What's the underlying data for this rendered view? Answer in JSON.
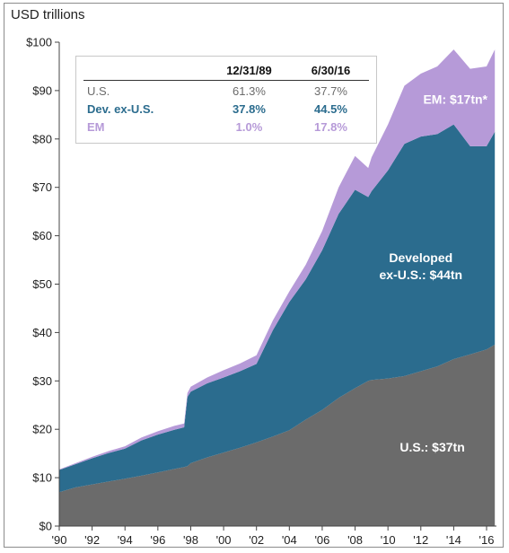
{
  "chart_data": {
    "type": "area",
    "stacked": true,
    "title": "",
    "ylabel": "USD trillions",
    "xlabel": "",
    "ylim": [
      0,
      100
    ],
    "xlim": [
      1990,
      2016.6
    ],
    "grid": false,
    "y_ticks": [
      "$0",
      "$10",
      "$20",
      "$30",
      "$40",
      "$50",
      "$60",
      "$70",
      "$80",
      "$90",
      "$100"
    ],
    "x_ticks": [
      "'90",
      "'92",
      "'94",
      "'96",
      "'98",
      "'00",
      "'02",
      "'04",
      "'06",
      "'08",
      "'10",
      "'12",
      "'14",
      "'16"
    ],
    "x": [
      1990,
      1991,
      1992,
      1993,
      1994,
      1995,
      1996,
      1997,
      1997.6,
      1997.8,
      1998,
      1999,
      2000,
      2001,
      2002,
      2003,
      2004,
      2005,
      2006,
      2007,
      2008,
      2008.8,
      2009,
      2010,
      2011,
      2012,
      2013,
      2014,
      2015,
      2016,
      2016.5
    ],
    "series": [
      {
        "name": "U.S.",
        "values": [
          7,
          8,
          8.6,
          9.2,
          9.8,
          10.4,
          11.1,
          11.8,
          12.2,
          12.4,
          13,
          14.2,
          15.2,
          16.2,
          17.3,
          18.5,
          19.8,
          22,
          24,
          26.5,
          28.5,
          30,
          30.2,
          30.5,
          31,
          32,
          33,
          34.5,
          35.5,
          36.5,
          37.5
        ]
      },
      {
        "name": "Developed ex-U.S.",
        "values": [
          4.6,
          4.8,
          5.4,
          5.9,
          6.2,
          7.3,
          7.8,
          8.1,
          8.2,
          14.3,
          14.8,
          15.3,
          15.5,
          15.8,
          16.2,
          22,
          26.5,
          29,
          33,
          38,
          41,
          38,
          39,
          43,
          48,
          48.5,
          48,
          48.5,
          43,
          42,
          44
        ]
      },
      {
        "name": "EM",
        "values": [
          0.1,
          0.2,
          0.3,
          0.4,
          0.5,
          0.6,
          0.7,
          0.8,
          0.8,
          0.8,
          1,
          1.2,
          1.5,
          1.6,
          1.8,
          2,
          2.2,
          3,
          4,
          5.5,
          7,
          6,
          7,
          9.5,
          12,
          13,
          14,
          15.5,
          16,
          16.5,
          17
        ]
      }
    ],
    "annotations": [
      {
        "text": "EM: $17tn*",
        "series": "EM"
      },
      {
        "text": "Developed",
        "series": "Developed ex-U.S."
      },
      {
        "text": "ex-U.S.: $44tn",
        "series": "Developed ex-U.S."
      },
      {
        "text": "U.S.: $37tn",
        "series": "U.S."
      }
    ],
    "colors": {
      "us": "#6b6b6b",
      "dev": "#2b6c8e",
      "em": "#b69ad8",
      "em_label": "#b69ad8"
    },
    "table": {
      "columns": [
        "",
        "12/31/89",
        "6/30/16"
      ],
      "rows": [
        {
          "label": "U.S.",
          "values": [
            "61.3%",
            "37.7%"
          ],
          "key": "us"
        },
        {
          "label": "Dev. ex-U.S.",
          "values": [
            "37.8%",
            "44.5%"
          ],
          "key": "dev"
        },
        {
          "label": "EM",
          "values": [
            "1.0%",
            "17.8%"
          ],
          "key": "em"
        }
      ]
    }
  }
}
